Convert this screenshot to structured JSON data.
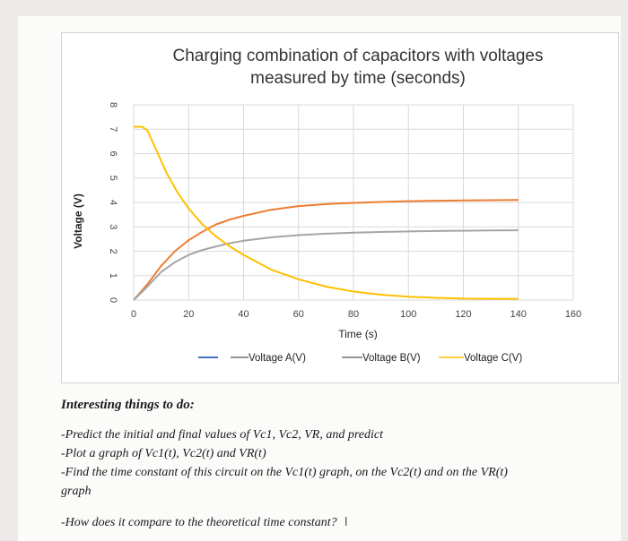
{
  "chart_data": {
    "type": "line",
    "title_lines": [
      "Charging combination of capacitors with voltages",
      "measured by time (seconds)"
    ],
    "xlabel": "Time (s)",
    "ylabel": "Voltage (V)",
    "x_ticks": [
      "0",
      "20",
      "40",
      "60",
      "80",
      "100",
      "120",
      "140",
      "160"
    ],
    "y_ticks": [
      "0",
      "1",
      "2",
      "3",
      "4",
      "5",
      "6",
      "7",
      "8"
    ],
    "xlim": [
      0,
      160
    ],
    "ylim": [
      0,
      8
    ],
    "grid": true,
    "legend_position": "bottom",
    "series": [
      {
        "name": "Voltage A(V)",
        "color": "#4472c4",
        "x": [],
        "y": []
      },
      {
        "name": "Voltage B(V)",
        "color": "#ed7d31",
        "x": [
          0,
          5,
          10,
          15,
          20,
          25,
          30,
          35,
          40,
          50,
          60,
          70,
          80,
          90,
          100,
          110,
          120,
          130,
          140
        ],
        "y": [
          0,
          0.65,
          1.4,
          2.0,
          2.45,
          2.8,
          3.1,
          3.3,
          3.45,
          3.7,
          3.85,
          3.93,
          3.98,
          4.02,
          4.05,
          4.07,
          4.08,
          4.09,
          4.1
        ]
      },
      {
        "name": "Voltage C(V)",
        "color": "#a5a5a5",
        "x": [
          0,
          5,
          10,
          15,
          20,
          25,
          30,
          35,
          40,
          50,
          60,
          70,
          80,
          90,
          100,
          110,
          120,
          130,
          140
        ],
        "y": [
          0,
          0.55,
          1.15,
          1.55,
          1.85,
          2.05,
          2.2,
          2.33,
          2.43,
          2.57,
          2.66,
          2.72,
          2.76,
          2.79,
          2.81,
          2.83,
          2.84,
          2.85,
          2.86
        ]
      },
      {
        "name": "Voltage C(V)",
        "color": "#ffc000",
        "x": [
          0,
          3,
          5,
          8,
          12,
          16,
          20,
          25,
          30,
          35,
          40,
          50,
          60,
          70,
          80,
          90,
          100,
          110,
          120,
          130,
          140
        ],
        "y": [
          7.1,
          7.1,
          6.95,
          6.2,
          5.2,
          4.4,
          3.75,
          3.1,
          2.6,
          2.2,
          1.85,
          1.25,
          0.85,
          0.55,
          0.35,
          0.22,
          0.14,
          0.09,
          0.06,
          0.05,
          0.05
        ]
      }
    ]
  },
  "legend": {
    "series_a_label": "Voltage A(V)",
    "series_b_label": "Voltage B(V)",
    "series_c_label": "Voltage C(V)"
  },
  "notes": {
    "heading": "Interesting things to do:",
    "line1": "-Predict the initial and final values of Vc1, Vc2, VR, and predict",
    "line2": "-Plot a graph of Vc1(t), Vc2(t) and VR(t)",
    "line3": "-Find the time constant of this circuit on the Vc1(t) graph, on the Vc2(t) and on the VR(t)",
    "line3b": "graph",
    "line4": "-How does it compare to the theoretical time constant?",
    "cursor": "I"
  }
}
